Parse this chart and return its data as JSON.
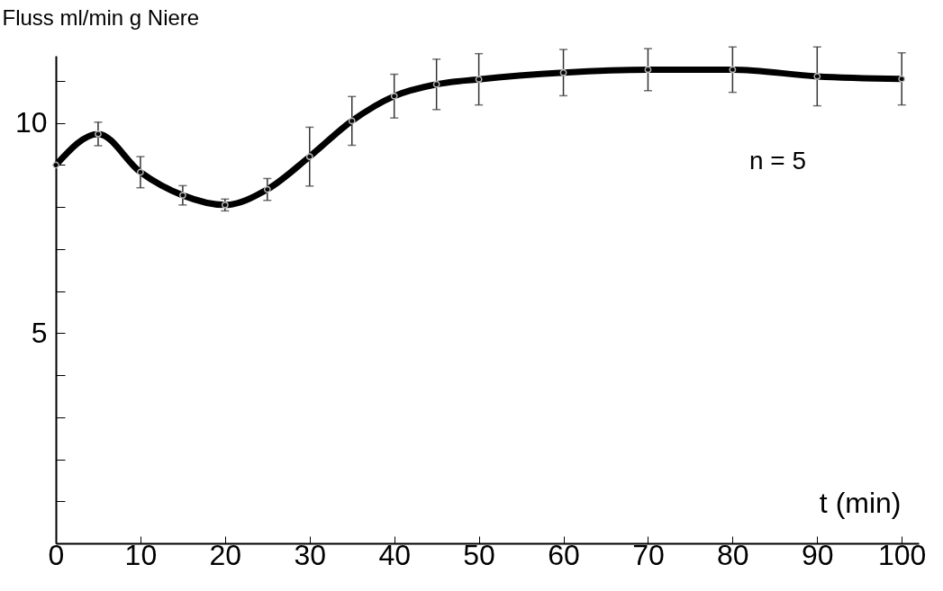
{
  "chart_data": {
    "type": "line",
    "xlabel": "t (min)",
    "ylabel": "Fluss ml/min g Niere",
    "annotations": [
      "n = 5"
    ],
    "x": [
      0,
      5,
      10,
      15,
      20,
      25,
      30,
      35,
      40,
      45,
      50,
      60,
      70,
      80,
      90,
      100
    ],
    "series": [
      {
        "color": "#000000",
        "values": [
          9.0,
          9.74,
          8.83,
          8.28,
          8.05,
          8.42,
          9.2,
          10.05,
          10.64,
          10.92,
          11.04,
          11.2,
          11.27,
          11.27,
          11.11,
          11.05
        ],
        "errors": [
          null,
          0.28,
          0.37,
          0.23,
          0.14,
          0.26,
          0.7,
          0.58,
          0.52,
          0.6,
          0.61,
          0.55,
          0.5,
          0.54,
          0.7,
          0.62
        ]
      }
    ],
    "xlim": [
      0,
      102
    ],
    "xticks": [
      0,
      10,
      20,
      30,
      40,
      50,
      60,
      70,
      80,
      90,
      100
    ],
    "ylim": [
      0,
      11.6
    ],
    "yticks": [
      {
        "value": 1,
        "label": null
      },
      {
        "value": 2,
        "label": null
      },
      {
        "value": 3,
        "label": null
      },
      {
        "value": 4,
        "label": null
      },
      5,
      {
        "value": 6,
        "label": null
      },
      {
        "value": 7,
        "label": null
      },
      {
        "value": 8,
        "label": null
      },
      {
        "value": 9,
        "label": null
      },
      10,
      {
        "value": 11,
        "label": null
      }
    ],
    "marker": "circle",
    "line_style": "solid",
    "grid": false
  }
}
